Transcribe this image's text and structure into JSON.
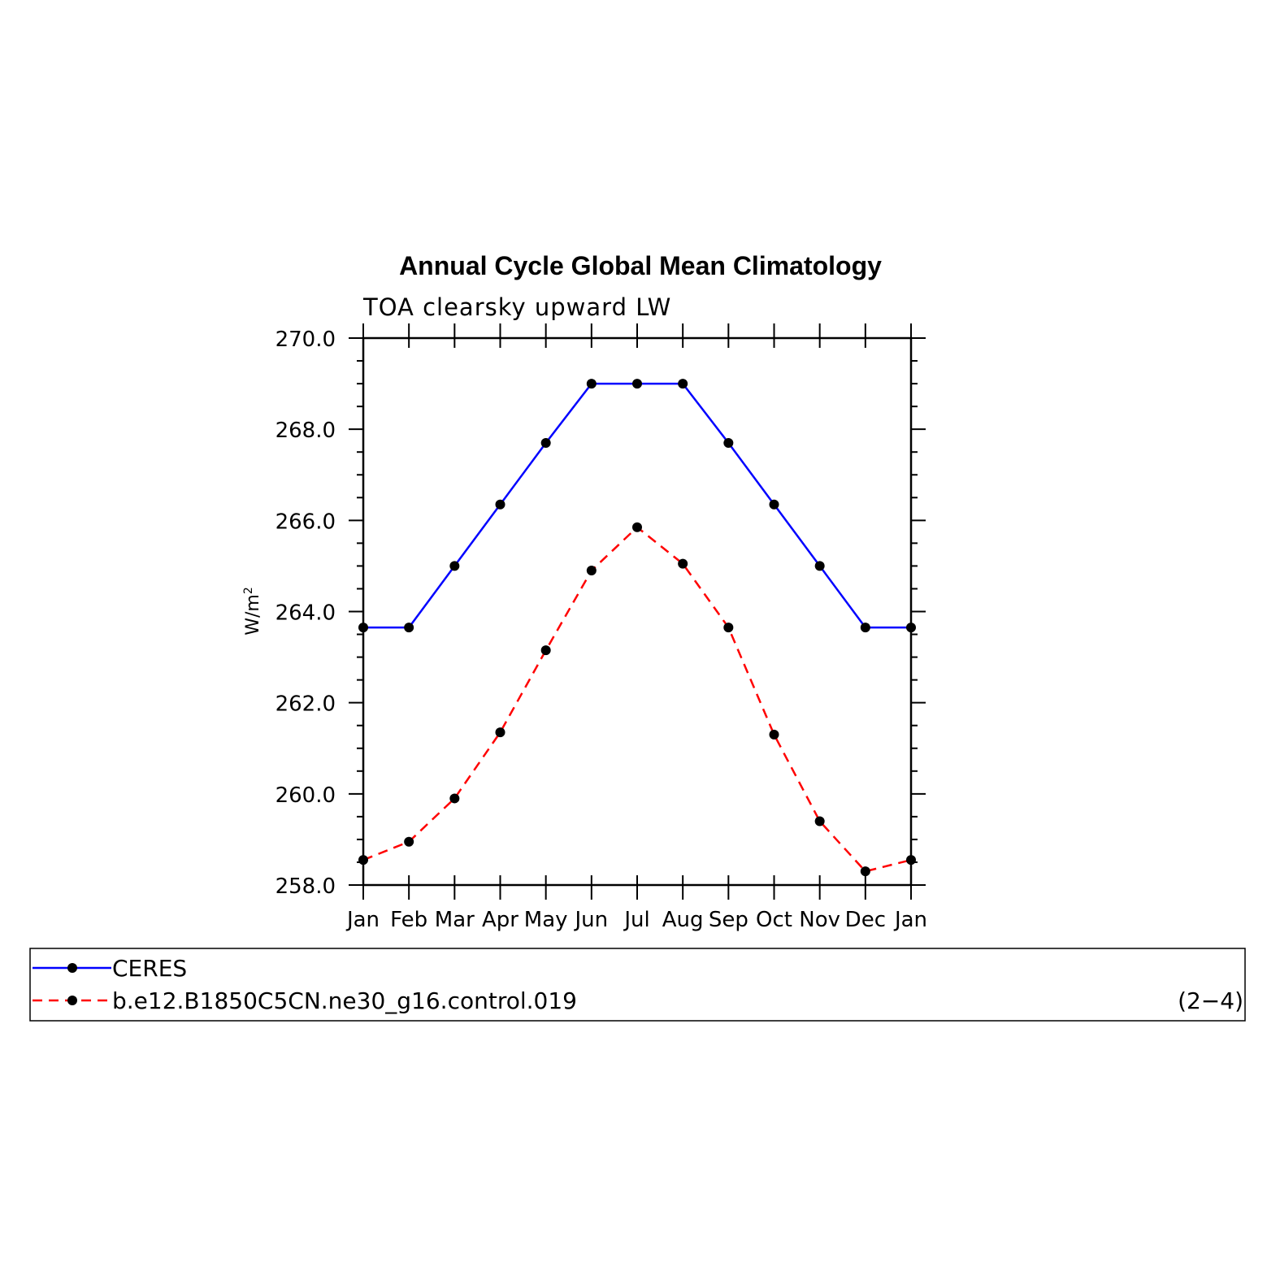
{
  "chart_data": {
    "type": "line",
    "title": "Annual Cycle Global Mean Climatology",
    "subtitle": "TOA clearsky upward LW",
    "ylabel": "W/m",
    "ylabel_sup": "2",
    "xlabel": "",
    "categories": [
      "Jan",
      "Feb",
      "Mar",
      "Apr",
      "May",
      "Jun",
      "Jul",
      "Aug",
      "Sep",
      "Oct",
      "Nov",
      "Dec",
      "Jan"
    ],
    "ylim": [
      258.0,
      270.0
    ],
    "yticks": [
      "258.0",
      "260.0",
      "262.0",
      "264.0",
      "266.0",
      "268.0",
      "270.0"
    ],
    "grid": false,
    "series": [
      {
        "name": "CERES",
        "color": "#0000ff",
        "dash": "solid",
        "values": [
          263.65,
          263.65,
          265.0,
          266.35,
          267.7,
          269.0,
          269.0,
          269.0,
          267.7,
          266.35,
          265.0,
          263.65,
          263.65
        ]
      },
      {
        "name": "b.e12.B1850C5CN.ne30_g16.control.019",
        "color": "#ff0000",
        "dash": "dashed",
        "values": [
          258.55,
          258.95,
          259.9,
          261.35,
          263.15,
          264.9,
          265.85,
          265.05,
          263.65,
          261.3,
          259.4,
          258.3,
          258.55
        ]
      }
    ],
    "legend_placement": "bottom",
    "panel_label": "(2−4)"
  }
}
